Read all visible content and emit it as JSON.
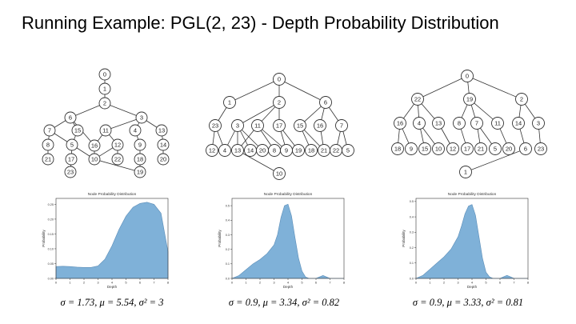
{
  "slide": {
    "title": "Running Example: PGL(2, 23) - Depth Probability Distribution"
  },
  "trees": [
    {
      "edges": [
        [
          "0",
          "1"
        ],
        [
          "1",
          "2"
        ],
        [
          "2",
          "6"
        ],
        [
          "2",
          "3"
        ],
        [
          "6",
          "7"
        ],
        [
          "6",
          "15"
        ],
        [
          "6",
          "16"
        ],
        [
          "3",
          "11"
        ],
        [
          "3",
          "4"
        ],
        [
          "3",
          "13"
        ],
        [
          "7",
          "8"
        ],
        [
          "7",
          "5"
        ],
        [
          "15",
          "5"
        ],
        [
          "8",
          "21"
        ],
        [
          "5",
          "17"
        ],
        [
          "5",
          "10"
        ],
        [
          "11",
          "16"
        ],
        [
          "11",
          "12"
        ],
        [
          "16",
          "10"
        ],
        [
          "12",
          "10"
        ],
        [
          "12",
          "22"
        ],
        [
          "4",
          "9"
        ],
        [
          "13",
          "14"
        ],
        [
          "9",
          "18"
        ],
        [
          "14",
          "20"
        ],
        [
          "17",
          "23"
        ],
        [
          "10",
          "19"
        ],
        [
          "18",
          "19"
        ]
      ],
      "nodes": [
        "0",
        "1",
        "2",
        "6",
        "3",
        "7",
        "15",
        "16",
        "11",
        "4",
        "13",
        "8",
        "5",
        "12",
        "9",
        "14",
        "21",
        "17",
        "10",
        "22",
        "18",
        "20",
        "23",
        "19"
      ]
    },
    {
      "edges": [
        [
          "0",
          "1"
        ],
        [
          "0",
          "2"
        ],
        [
          "0",
          "6"
        ],
        [
          "1",
          "23"
        ],
        [
          "2",
          "3"
        ],
        [
          "2",
          "11"
        ],
        [
          "2",
          "17"
        ],
        [
          "6",
          "15"
        ],
        [
          "6",
          "16"
        ],
        [
          "6",
          "7"
        ],
        [
          "23",
          "12"
        ],
        [
          "23",
          "4"
        ],
        [
          "3",
          "4"
        ],
        [
          "3",
          "13"
        ],
        [
          "3",
          "14"
        ],
        [
          "3",
          "20"
        ],
        [
          "11",
          "13"
        ],
        [
          "11",
          "8"
        ],
        [
          "11",
          "9"
        ],
        [
          "17",
          "9"
        ],
        [
          "17",
          "19"
        ],
        [
          "15",
          "18"
        ],
        [
          "15",
          "21"
        ],
        [
          "16",
          "21"
        ],
        [
          "7",
          "22"
        ],
        [
          "7",
          "5"
        ],
        [
          "13",
          "10"
        ]
      ],
      "nodes": [
        "0",
        "1",
        "2",
        "6",
        "23",
        "3",
        "11",
        "17",
        "15",
        "16",
        "7",
        "12",
        "4",
        "13",
        "14",
        "20",
        "8",
        "9",
        "19",
        "18",
        "21",
        "22",
        "5",
        "10"
      ]
    },
    {
      "edges": [
        [
          "0",
          "22"
        ],
        [
          "0",
          "19"
        ],
        [
          "0",
          "2"
        ],
        [
          "22",
          "16"
        ],
        [
          "22",
          "4"
        ],
        [
          "22",
          "13"
        ],
        [
          "19",
          "8"
        ],
        [
          "19",
          "7"
        ],
        [
          "19",
          "11"
        ],
        [
          "2",
          "14"
        ],
        [
          "2",
          "3"
        ],
        [
          "16",
          "18"
        ],
        [
          "16",
          "9"
        ],
        [
          "4",
          "15"
        ],
        [
          "4",
          "10"
        ],
        [
          "13",
          "12"
        ],
        [
          "8",
          "17"
        ],
        [
          "7",
          "21"
        ],
        [
          "7",
          "5"
        ],
        [
          "11",
          "20"
        ],
        [
          "14",
          "6"
        ],
        [
          "3",
          "23"
        ],
        [
          "6",
          "1"
        ]
      ],
      "nodes": [
        "0",
        "22",
        "19",
        "2",
        "16",
        "4",
        "13",
        "8",
        "7",
        "11",
        "14",
        "3",
        "18",
        "9",
        "15",
        "10",
        "12",
        "17",
        "21",
        "5",
        "20",
        "6",
        "23",
        "1"
      ]
    }
  ],
  "plots": [
    {
      "title": "Node Probability Distribution",
      "xlabel": "Depth",
      "ylabel": "Probability",
      "xlim": [
        0,
        8
      ],
      "ylim": [
        0,
        0.27
      ],
      "xticks": [
        0,
        1,
        2,
        3,
        4,
        5,
        6,
        7,
        8
      ],
      "yticks": [
        "0.00",
        "0.05",
        "0.10",
        "0.15",
        "0.20",
        "0.25"
      ],
      "ytick_values": [
        0,
        0.05,
        0.1,
        0.15,
        0.2,
        0.25
      ],
      "x": [
        0,
        0.5,
        1,
        1.5,
        2,
        2.5,
        3,
        3.5,
        4,
        4.5,
        5,
        5.5,
        6,
        6.5,
        7,
        7.5,
        8
      ],
      "y": [
        0.04,
        0.041,
        0.04,
        0.038,
        0.037,
        0.037,
        0.042,
        0.065,
        0.11,
        0.165,
        0.21,
        0.24,
        0.253,
        0.257,
        0.25,
        0.22,
        0.09
      ],
      "caption": "σ = 1.73, μ = 5.54, σ² = 3"
    },
    {
      "title": "Node Probability Distribution",
      "xlabel": "Depth",
      "ylabel": "Probability",
      "xlim": [
        0,
        8
      ],
      "ylim": [
        0,
        0.55
      ],
      "xticks": [
        0,
        1,
        2,
        3,
        4,
        5,
        6,
        7,
        8
      ],
      "yticks": [
        "0.0",
        "0.1",
        "0.2",
        "0.3",
        "0.4",
        "0.5"
      ],
      "ytick_values": [
        0,
        0.1,
        0.2,
        0.3,
        0.4,
        0.5
      ],
      "x": [
        0,
        0.5,
        1,
        1.5,
        2,
        2.5,
        3,
        3.25,
        3.5,
        3.75,
        4,
        4.25,
        4.5,
        4.75,
        5,
        5.25,
        5.5,
        6,
        6.25,
        6.5,
        6.75,
        7,
        7.5,
        8
      ],
      "y": [
        0,
        0.02,
        0.06,
        0.1,
        0.13,
        0.17,
        0.23,
        0.3,
        0.42,
        0.5,
        0.51,
        0.43,
        0.28,
        0.14,
        0.05,
        0.01,
        0,
        0,
        0.01,
        0.02,
        0.01,
        0,
        0,
        0
      ],
      "caption": "σ = 0.9, μ = 3.34, σ² = 0.82"
    },
    {
      "title": "Node Probability Distribution",
      "xlabel": "Depth",
      "ylabel": "Probability",
      "xlim": [
        0,
        8
      ],
      "ylim": [
        0,
        0.52
      ],
      "xticks": [
        0,
        1,
        2,
        3,
        4,
        5,
        6,
        7,
        8
      ],
      "yticks": [
        "0.0",
        "0.1",
        "0.2",
        "0.3",
        "0.4",
        "0.5"
      ],
      "ytick_values": [
        0,
        0.1,
        0.2,
        0.3,
        0.4,
        0.5
      ],
      "x": [
        0,
        0.5,
        1,
        1.5,
        2,
        2.5,
        3,
        3.25,
        3.5,
        3.75,
        4,
        4.25,
        4.5,
        4.75,
        5,
        5.25,
        5.5,
        6,
        6.25,
        6.5,
        6.75,
        7,
        7.5,
        8
      ],
      "y": [
        0,
        0.02,
        0.06,
        0.1,
        0.14,
        0.19,
        0.27,
        0.34,
        0.42,
        0.47,
        0.48,
        0.41,
        0.27,
        0.13,
        0.04,
        0.01,
        0,
        0,
        0.01,
        0.02,
        0.01,
        0,
        0,
        0
      ],
      "caption": "σ = 0.9, μ = 3.33, σ² = 0.81"
    }
  ],
  "colors": {
    "fill": "#7fb1d8",
    "stroke": "#5b8db8",
    "node_fill": "#ffffff",
    "node_stroke": "#333333",
    "axis": "#333333"
  }
}
